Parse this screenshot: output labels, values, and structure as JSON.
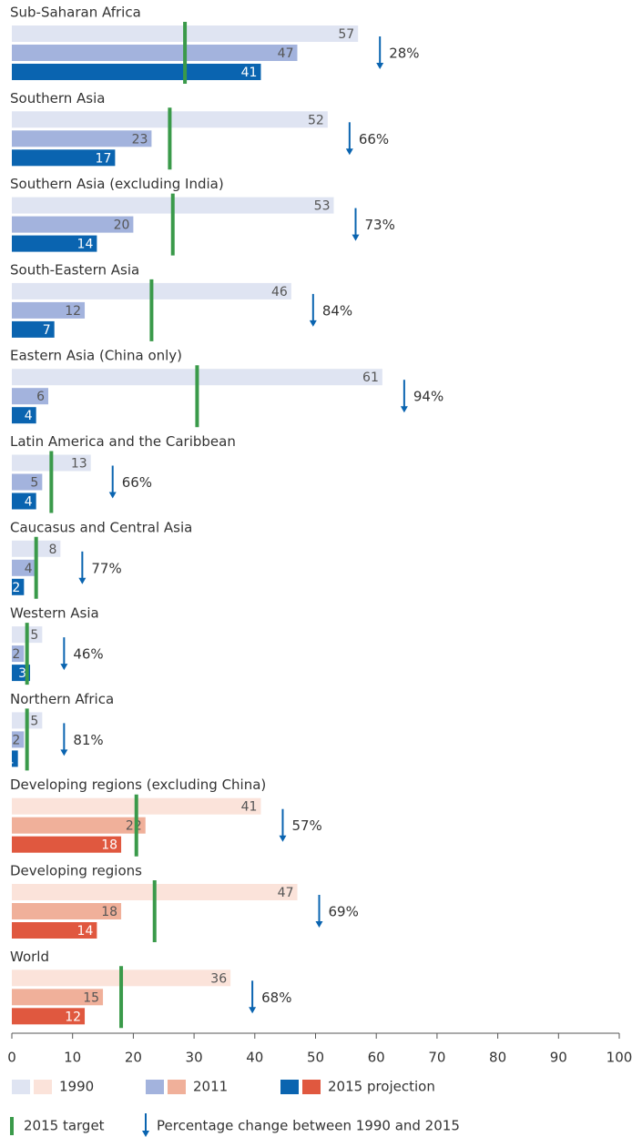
{
  "chart_data": {
    "type": "bar",
    "orientation": "horizontal",
    "categories": [
      "Sub-Saharan Africa",
      "Southern Asia",
      "Southern Asia (excluding India)",
      "South-Eastern Asia",
      "Eastern Asia (China only)",
      "Latin America and the Caribbean",
      "Caucasus and Central Asia",
      "Western Asia",
      "Northern Africa",
      "Developing regions (excluding China)",
      "Developing regions",
      "World"
    ],
    "series": [
      {
        "name": "1990",
        "colors": [
          "#dfe4f2",
          "#dfe4f2",
          "#dfe4f2",
          "#dfe4f2",
          "#dfe4f2",
          "#dfe4f2",
          "#dfe4f2",
          "#dfe4f2",
          "#dfe4f2",
          "#fbe3da",
          "#fbe3da",
          "#fbe3da"
        ],
        "values": [
          57,
          52,
          53,
          46,
          61,
          13,
          8,
          5,
          5,
          41,
          47,
          36
        ]
      },
      {
        "name": "2011",
        "colors": [
          "#a3b3dd",
          "#a3b3dd",
          "#a3b3dd",
          "#a3b3dd",
          "#a3b3dd",
          "#a3b3dd",
          "#a3b3dd",
          "#a3b3dd",
          "#a3b3dd",
          "#f0b09a",
          "#f0b09a",
          "#f0b09a"
        ],
        "values": [
          47,
          23,
          20,
          12,
          6,
          5,
          4,
          2,
          2,
          22,
          18,
          15
        ]
      },
      {
        "name": "2015 projection",
        "colors": [
          "#0a64b0",
          "#0a64b0",
          "#0a64b0",
          "#0a64b0",
          "#0a64b0",
          "#0a64b0",
          "#0a64b0",
          "#0a64b0",
          "#0a64b0",
          "#e0583f",
          "#e0583f",
          "#e0583f"
        ],
        "values": [
          41,
          17,
          14,
          7,
          4,
          4,
          2,
          3,
          1,
          18,
          14,
          12
        ]
      }
    ],
    "target": {
      "name": "2015 target",
      "color": "#3a9a4a",
      "values": [
        28.5,
        26,
        26.5,
        23,
        30.5,
        6.5,
        4,
        2.5,
        2.5,
        20.5,
        23.5,
        18
      ]
    },
    "change": {
      "name": "Percentage change between 1990 and 2015",
      "color": "#0a64b0",
      "values": [
        28,
        66,
        73,
        84,
        94,
        66,
        77,
        46,
        81,
        57,
        69,
        68
      ],
      "value_labels": [
        "28%",
        "66%",
        "73%",
        "84%",
        "94%",
        "66%",
        "77%",
        "46%",
        "81%",
        "57%",
        "69%",
        "68%"
      ]
    },
    "xlim": [
      0,
      100
    ],
    "xticks": [
      0,
      10,
      20,
      30,
      40,
      50,
      60,
      70,
      80,
      90,
      100
    ]
  }
}
